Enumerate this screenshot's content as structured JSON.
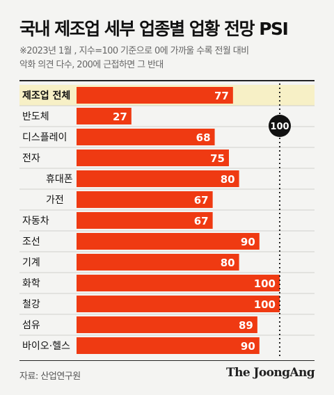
{
  "title": "국내 제조업 세부 업종별 업황 전망 PSI",
  "subtitle": [
    "※2023년 1월 , 지수=100 기준으로 0에 가까울 수록 전월 대비",
    "악화 의견 다수, 200에 근접하면 그 반대"
  ],
  "source": "자료: 산업연구원",
  "brand": "The JoongAng",
  "colors": {
    "bar": "#ef3a12",
    "highlight_band": "#f7f0c6",
    "marker": "#111111"
  },
  "chart_data": {
    "type": "bar",
    "orientation": "horizontal",
    "categories": [
      "제조업 전체",
      "반도체",
      "디스플레이",
      "전자",
      "휴대폰",
      "가전",
      "자동차",
      "조선",
      "기계",
      "화학",
      "철강",
      "섬유",
      "바이오·헬스"
    ],
    "indented": [
      false,
      false,
      false,
      false,
      true,
      true,
      false,
      false,
      false,
      false,
      false,
      false,
      false
    ],
    "highlighted": [
      true,
      false,
      false,
      false,
      false,
      false,
      false,
      false,
      false,
      false,
      false,
      false,
      false
    ],
    "values": [
      77,
      27,
      68,
      75,
      80,
      67,
      67,
      90,
      80,
      100,
      100,
      89,
      90
    ],
    "value_labels": [
      "77",
      "27",
      "68",
      "75",
      "80",
      "67",
      "67",
      "90",
      "80",
      "100",
      "100",
      "89",
      "90"
    ],
    "xlim": [
      0,
      100
    ],
    "reference_line": {
      "value": 100,
      "label": "100",
      "style": "dotted"
    },
    "data_labels": "inside-end"
  }
}
